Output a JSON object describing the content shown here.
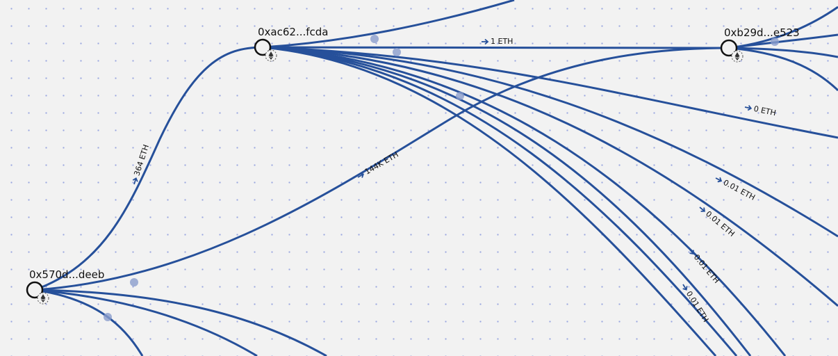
{
  "nodes": [
    {
      "label": "0xac62...fcda"
    },
    {
      "label": "0xb29d...e523"
    },
    {
      "label": "0x570d...deeb"
    }
  ],
  "edges": [
    {
      "label": "1 ETH"
    },
    {
      "label": "364 ETH"
    },
    {
      "label": "144K ETH"
    },
    {
      "label": "0 ETH"
    },
    {
      "label": "0.01 ETH"
    },
    {
      "label": "0.01 ETH"
    },
    {
      "label": "0.01 ETH"
    },
    {
      "label": "0.01 ETH"
    }
  ]
}
